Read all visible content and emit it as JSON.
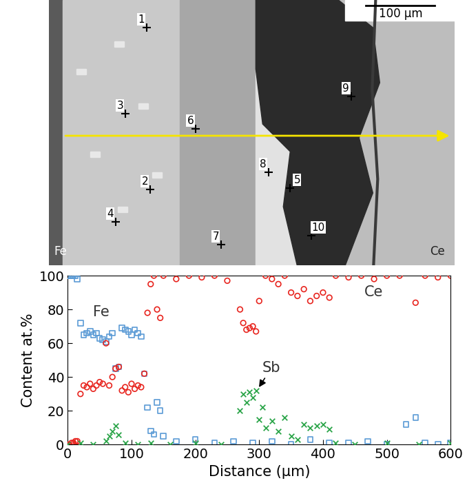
{
  "image": {
    "scale_bar": "100 µm",
    "left_label": "Fe",
    "right_label": "Ce",
    "points": [
      "1",
      "2",
      "3",
      "4",
      "5",
      "6",
      "7",
      "8",
      "9",
      "10"
    ]
  },
  "chart_data": {
    "type": "scatter",
    "xlabel": "Distance (µm)",
    "ylabel": "Content at.%",
    "xlim": [
      0,
      600
    ],
    "ylim": [
      0,
      100
    ],
    "xticks": [
      0,
      100,
      200,
      300,
      400,
      500,
      600
    ],
    "yticks": [
      0,
      20,
      40,
      60,
      80,
      100
    ],
    "grid": false,
    "annotation": "Sb",
    "series": [
      {
        "name": "Fe",
        "color": "#5b9bd5",
        "marker": "square",
        "x": [
          0,
          3,
          6,
          9,
          12,
          15,
          20,
          25,
          30,
          35,
          40,
          45,
          50,
          55,
          60,
          65,
          70,
          75,
          80,
          85,
          90,
          95,
          100,
          105,
          110,
          115,
          120,
          125,
          130,
          135,
          140,
          145,
          150,
          170,
          200,
          230,
          260,
          290,
          320,
          350,
          380,
          410,
          440,
          470,
          500,
          530,
          545,
          560,
          580,
          600
        ],
        "values": [
          100,
          100,
          100,
          100,
          100,
          98,
          72,
          65,
          66,
          67,
          65,
          66,
          63,
          62,
          61,
          64,
          66,
          45,
          46,
          69,
          68,
          67,
          65,
          68,
          66,
          64,
          42,
          22,
          8,
          6,
          25,
          20,
          5,
          2,
          3,
          1,
          2,
          1,
          2,
          0,
          3,
          1,
          1,
          2,
          0,
          12,
          16,
          1,
          0,
          1
        ]
      },
      {
        "name": "Ce",
        "color": "#e8251f",
        "marker": "circle",
        "x": [
          0,
          3,
          6,
          9,
          12,
          15,
          20,
          25,
          30,
          35,
          40,
          45,
          50,
          55,
          60,
          65,
          70,
          75,
          80,
          85,
          90,
          95,
          100,
          105,
          110,
          115,
          120,
          125,
          130,
          135,
          140,
          145,
          150,
          170,
          190,
          210,
          230,
          250,
          270,
          275,
          280,
          285,
          290,
          295,
          300,
          310,
          320,
          330,
          340,
          350,
          360,
          370,
          380,
          390,
          400,
          410,
          420,
          440,
          460,
          480,
          500,
          520,
          545,
          560,
          580,
          600
        ],
        "values": [
          0,
          0,
          1,
          1,
          2,
          2,
          30,
          35,
          34,
          36,
          33,
          35,
          37,
          36,
          60,
          35,
          40,
          45,
          46,
          32,
          34,
          31,
          36,
          33,
          35,
          34,
          42,
          78,
          95,
          100,
          80,
          75,
          100,
          98,
          100,
          99,
          100,
          97,
          80,
          72,
          68,
          69,
          70,
          67,
          85,
          100,
          98,
          95,
          100,
          90,
          88,
          92,
          85,
          88,
          90,
          87,
          100,
          99,
          100,
          98,
          100,
          100,
          84,
          100,
          99,
          100
        ]
      },
      {
        "name": "Sb",
        "color": "#2ca54a",
        "marker": "x",
        "x": [
          0,
          20,
          40,
          60,
          65,
          70,
          75,
          80,
          90,
          110,
          130,
          160,
          200,
          240,
          270,
          275,
          280,
          285,
          290,
          295,
          300,
          305,
          310,
          320,
          330,
          340,
          350,
          360,
          370,
          380,
          390,
          400,
          410,
          420,
          450,
          500,
          550,
          600
        ],
        "values": [
          0,
          1,
          0,
          2,
          5,
          8,
          11,
          6,
          1,
          0,
          1,
          0,
          1,
          0,
          20,
          30,
          25,
          31,
          28,
          32,
          15,
          22,
          10,
          14,
          8,
          16,
          5,
          3,
          12,
          10,
          11,
          12,
          9,
          1,
          0,
          1,
          0,
          1
        ]
      }
    ]
  }
}
